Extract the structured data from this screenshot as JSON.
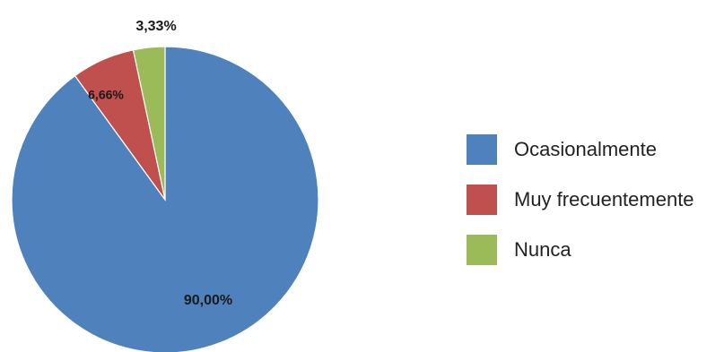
{
  "chart_data": {
    "type": "pie",
    "categories": [
      "Ocasionalmente",
      "Muy frecuentemente",
      "Nunca"
    ],
    "values": [
      90.0,
      6.66,
      3.33
    ],
    "data_labels": [
      "90,00%",
      "6,66%",
      "3,33%"
    ],
    "colors": [
      "#4f81bd",
      "#c0504d",
      "#9bbb59"
    ],
    "start_angle_deg": 0,
    "direction": "clockwise",
    "legend_position": "right",
    "legend": [
      {
        "label": "Ocasionalmente",
        "color": "#4f81bd"
      },
      {
        "label": "Muy frecuentemente",
        "color": "#c0504d"
      },
      {
        "label": "Nunca",
        "color": "#9bbb59"
      }
    ]
  }
}
